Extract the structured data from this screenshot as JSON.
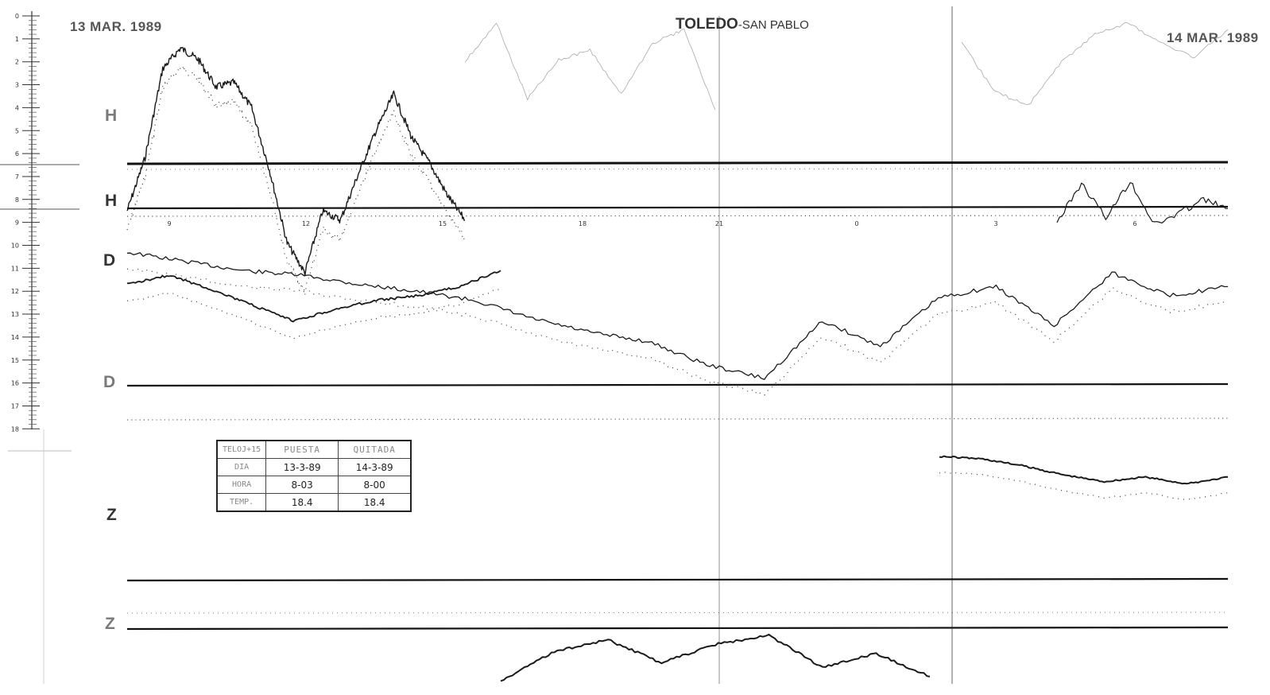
{
  "header": {
    "date_start": "13 MAR. 1989",
    "date_end": "14 MAR. 1989",
    "station": "TOLEDO",
    "station_suffix": "-SAN PABLO"
  },
  "channels": {
    "h_top": "H",
    "h_base": "H",
    "d_top": "D",
    "d_base": "D",
    "z_top": "Z",
    "z_base": "Z"
  },
  "scale_ticks": [
    "0",
    "1",
    "2",
    "3",
    "4",
    "5",
    "6",
    "7",
    "8",
    "9",
    "10",
    "11",
    "12",
    "13",
    "14",
    "15",
    "16",
    "17",
    "18"
  ],
  "hour_marks": [
    "9",
    "12",
    "15",
    "18",
    "21",
    "0",
    "3",
    "6"
  ],
  "calibration_table": {
    "header": [
      "TELOJ+15",
      "PUESTA",
      "QUITADA"
    ],
    "rows": [
      {
        "label": "DIA",
        "puesta": "13-3-89",
        "quitada": "14-3-89"
      },
      {
        "label": "HORA",
        "puesta": "8-03",
        "quitada": "8-00"
      },
      {
        "label": "TEMP.",
        "puesta": "18.4",
        "quitada": "18.4"
      }
    ]
  },
  "colors": {
    "trace": "#1a1a1a",
    "baseline": "#111111",
    "faint": "#a9a9a9",
    "label": "#7a7a7a"
  },
  "chart_data": {
    "type": "line",
    "title": "TOLEDO-SAN PABLO",
    "x_range": [
      "13 MAR. 1989",
      "14 MAR. 1989"
    ],
    "series": [
      {
        "name": "H",
        "values": [
          8.5,
          6.2,
          2.3,
          1.4,
          1.9,
          3.1,
          2.9,
          4.0,
          6.7,
          9.9,
          11.2,
          8.5,
          8.9,
          6.9,
          5.0,
          3.4,
          5.3,
          6.4,
          7.8,
          8.9
        ]
      },
      {
        "name": "D",
        "values": [
          10.3,
          10.7,
          11.1,
          11.3,
          11.7,
          12.0,
          12.4,
          13.2,
          13.8,
          14.2,
          15.2,
          15.8,
          13.3,
          14.4,
          12.3,
          11.8,
          13.5,
          11.2,
          12.2,
          11.8
        ]
      },
      {
        "name": "Z",
        "values": [
          11.7,
          11.3,
          11.9,
          12.6,
          13.3,
          12.8,
          12.4,
          12.2,
          11.8,
          11.1
        ]
      }
    ],
    "ylim": [
      0,
      18
    ]
  }
}
